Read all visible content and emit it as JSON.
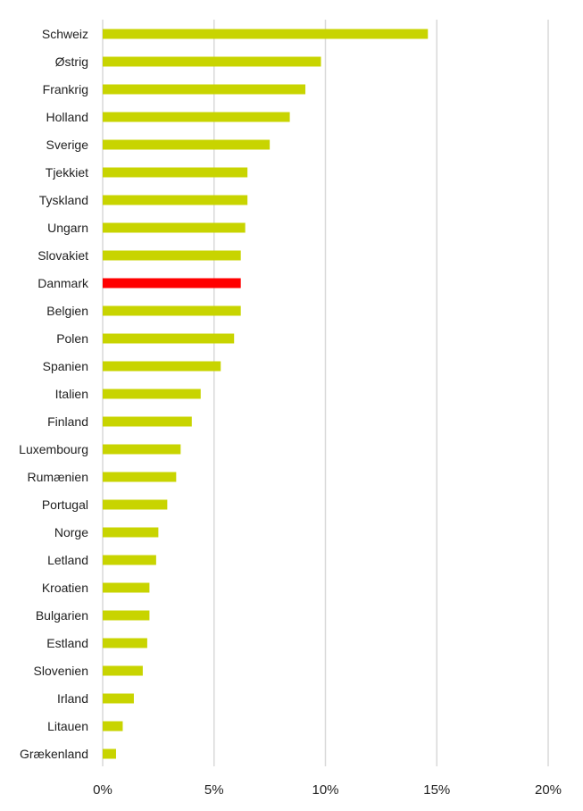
{
  "chart_data": {
    "type": "bar",
    "orientation": "horizontal",
    "title": "",
    "xlabel": "",
    "ylabel": "",
    "categories": [
      "Schweiz",
      "Østrig",
      "Frankrig",
      "Holland",
      "Sverige",
      "Tjekkiet",
      "Tyskland",
      "Ungarn",
      "Slovakiet",
      "Danmark",
      "Belgien",
      "Polen",
      "Spanien",
      "Italien",
      "Finland",
      "Luxembourg",
      "Rumænien",
      "Portugal",
      "Norge",
      "Letland",
      "Kroatien",
      "Bulgarien",
      "Estland",
      "Slovenien",
      "Irland",
      "Litauen",
      "Grækenland"
    ],
    "values": [
      14.6,
      9.8,
      9.1,
      8.4,
      7.5,
      6.5,
      6.5,
      6.4,
      6.2,
      6.2,
      6.2,
      5.9,
      5.3,
      4.4,
      4.0,
      3.5,
      3.3,
      2.9,
      2.5,
      2.4,
      2.1,
      2.1,
      2.0,
      1.8,
      1.4,
      0.9,
      0.6
    ],
    "xlim": [
      0,
      20
    ],
    "xticks": [
      0,
      5,
      10,
      15,
      20
    ],
    "xtick_labels": [
      "0%",
      "5%",
      "10%",
      "15%",
      "20%"
    ],
    "grid": "vertical",
    "legend": "none",
    "colors": {
      "default": "#c8d400",
      "highlight": "#ff0000"
    },
    "highlight_category": "Danmark"
  }
}
